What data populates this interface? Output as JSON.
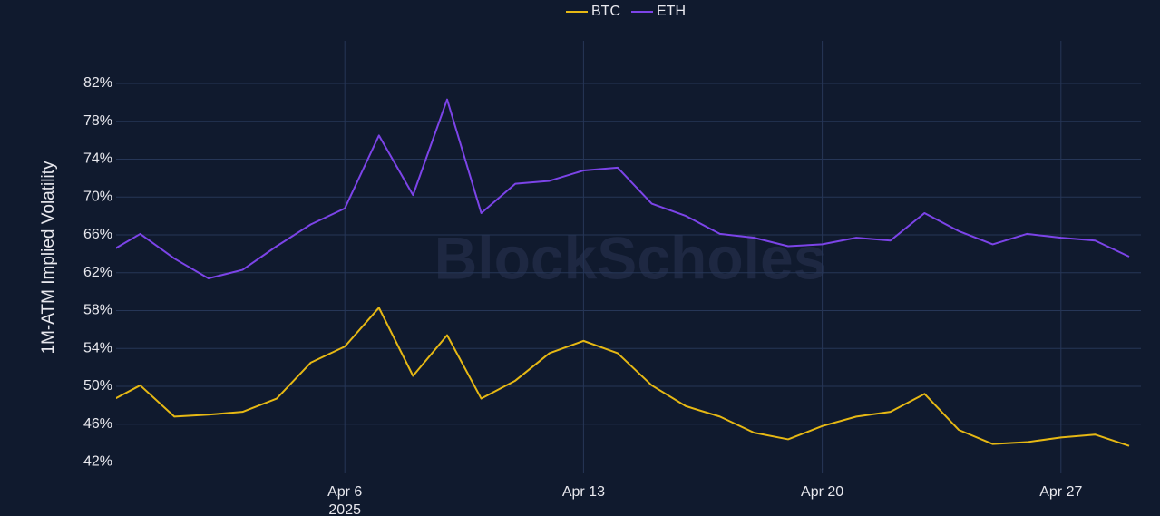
{
  "chart_data": {
    "type": "line",
    "y_axis_label": "1M-ATM Implied Volatility",
    "watermark": "BlockScholes",
    "x": [
      "2025-03-30",
      "2025-03-31",
      "2025-04-01",
      "2025-04-02",
      "2025-04-03",
      "2025-04-04",
      "2025-04-05",
      "2025-04-06",
      "2025-04-07",
      "2025-04-08",
      "2025-04-09",
      "2025-04-10",
      "2025-04-11",
      "2025-04-12",
      "2025-04-13",
      "2025-04-14",
      "2025-04-15",
      "2025-04-16",
      "2025-04-17",
      "2025-04-18",
      "2025-04-19",
      "2025-04-20",
      "2025-04-21",
      "2025-04-22",
      "2025-04-23",
      "2025-04-24",
      "2025-04-25",
      "2025-04-26",
      "2025-04-27",
      "2025-04-28",
      "2025-04-29"
    ],
    "series": [
      {
        "name": "BTC",
        "color": "#e6b814",
        "values": [
          48.2,
          50.1,
          46.8,
          47.0,
          47.3,
          48.7,
          52.5,
          54.2,
          58.3,
          51.1,
          55.4,
          48.7,
          50.6,
          53.5,
          54.8,
          53.5,
          50.1,
          47.9,
          46.8,
          45.1,
          44.4,
          45.8,
          46.8,
          47.3,
          49.2,
          45.4,
          43.9,
          44.1,
          44.6,
          44.9,
          43.7
        ]
      },
      {
        "name": "ETH",
        "color": "#7c44e8",
        "values": [
          64.0,
          66.1,
          63.5,
          61.4,
          62.3,
          64.8,
          67.1,
          68.8,
          76.5,
          70.2,
          80.3,
          68.3,
          71.4,
          71.7,
          72.8,
          73.1,
          69.3,
          68.0,
          66.1,
          65.7,
          64.8,
          65.0,
          65.7,
          65.4,
          68.3,
          66.4,
          65.0,
          66.1,
          65.7,
          65.4,
          63.7
        ]
      }
    ],
    "xlim": [
      "2025-03-30",
      "2025-04-29"
    ],
    "xticks": [
      {
        "value": "2025-04-06",
        "label": "Apr 6"
      },
      {
        "value": "2025-04-13",
        "label": "Apr 13"
      },
      {
        "value": "2025-04-20",
        "label": "Apr 20"
      },
      {
        "value": "2025-04-27",
        "label": "Apr 27"
      }
    ],
    "x_year_label": "2025",
    "ylim": [
      40.8,
      86.5
    ],
    "yticks": [
      {
        "value": 42,
        "label": "42%"
      },
      {
        "value": 46,
        "label": "46%"
      },
      {
        "value": 50,
        "label": "50%"
      },
      {
        "value": 54,
        "label": "54%"
      },
      {
        "value": 58,
        "label": "58%"
      },
      {
        "value": 62,
        "label": "62%"
      },
      {
        "value": 66,
        "label": "66%"
      },
      {
        "value": 70,
        "label": "70%"
      },
      {
        "value": 74,
        "label": "74%"
      },
      {
        "value": 78,
        "label": "78%"
      },
      {
        "value": 82,
        "label": "82%"
      }
    ],
    "grid": true,
    "legend": "top"
  }
}
